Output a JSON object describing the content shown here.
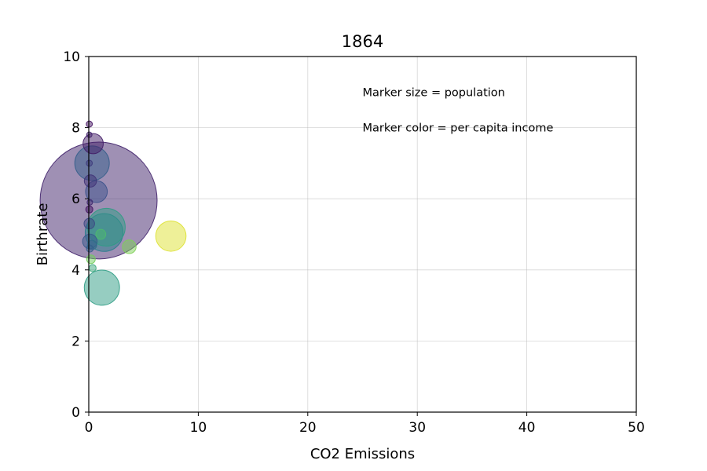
{
  "chart_data": {
    "type": "scatter",
    "title": "1864",
    "xlabel": "CO2 Emissions",
    "ylabel": "Birthrate",
    "xlim": [
      0,
      50
    ],
    "ylim": [
      0,
      10
    ],
    "xticks": [
      "0",
      "10",
      "20",
      "30",
      "40",
      "50"
    ],
    "yticks": [
      "0",
      "2",
      "4",
      "6",
      "8",
      "10"
    ],
    "grid": true,
    "annotations": [
      {
        "text": "Marker size = population",
        "x": 25,
        "y": 9
      },
      {
        "text": "Marker color = per capita income",
        "x": 25,
        "y": 8
      }
    ],
    "colormap": [
      "#440154",
      "#3b528b",
      "#21918c",
      "#5ec962",
      "#fde725"
    ],
    "points": [
      {
        "x": 0.9,
        "y": 5.95,
        "population": 11000,
        "income": 0.1
      },
      {
        "x": 0.3,
        "y": 7.0,
        "population": 960,
        "income": 0.3
      },
      {
        "x": 1.4,
        "y": 5.05,
        "population": 1150,
        "income": 0.42
      },
      {
        "x": 1.6,
        "y": 5.2,
        "population": 1150,
        "income": 0.55
      },
      {
        "x": 1.2,
        "y": 3.5,
        "population": 1000,
        "income": 0.55
      },
      {
        "x": 7.5,
        "y": 4.95,
        "population": 740,
        "income": 0.95
      },
      {
        "x": 0.4,
        "y": 7.55,
        "population": 330,
        "income": 0.08
      },
      {
        "x": 0.7,
        "y": 6.2,
        "population": 380,
        "income": 0.25
      },
      {
        "x": 0.15,
        "y": 6.5,
        "population": 120,
        "income": 0.15
      },
      {
        "x": 0.1,
        "y": 4.8,
        "population": 170,
        "income": 0.28
      },
      {
        "x": 0.05,
        "y": 5.3,
        "population": 90,
        "income": 0.22
      },
      {
        "x": 0.3,
        "y": 4.7,
        "population": 70,
        "income": 0.35
      },
      {
        "x": 3.7,
        "y": 4.65,
        "population": 150,
        "income": 0.8
      },
      {
        "x": 1.1,
        "y": 5.0,
        "population": 80,
        "income": 0.68
      },
      {
        "x": 0.2,
        "y": 4.3,
        "population": 60,
        "income": 0.78
      },
      {
        "x": 0.35,
        "y": 4.05,
        "population": 40,
        "income": 0.6
      },
      {
        "x": 0.05,
        "y": 8.1,
        "population": 30,
        "income": 0.05
      },
      {
        "x": 0.05,
        "y": 7.8,
        "population": 20,
        "income": 0.1
      },
      {
        "x": 0.05,
        "y": 5.7,
        "population": 40,
        "income": 0.05
      },
      {
        "x": 0.1,
        "y": 5.9,
        "population": 25,
        "income": 0.12
      },
      {
        "x": 0.1,
        "y": 4.6,
        "population": 40,
        "income": 0.3
      },
      {
        "x": 0.05,
        "y": 7.0,
        "population": 30,
        "income": 0.18
      }
    ]
  }
}
